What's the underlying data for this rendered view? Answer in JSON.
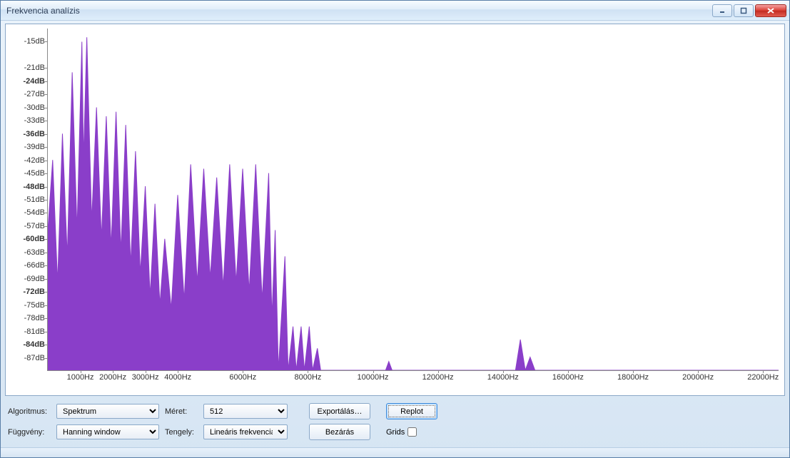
{
  "window": {
    "title": "Frekvencia analízis"
  },
  "controls": {
    "algorithm_label": "Algoritmus:",
    "algorithm_value": "Spektrum",
    "size_label": "Méret:",
    "size_value": "512",
    "function_label": "Függvény:",
    "function_value": "Hanning window",
    "axis_label": "Tengely:",
    "axis_value": "Lineáris frekvencia",
    "export_label": "Exportálás…",
    "close_label": "Bezárás",
    "replot_label": "Replot",
    "grids_label": "Grids"
  },
  "chart": {
    "type": "spectrum",
    "fill_color": "#8a3ec9",
    "background_color": "#ffffff",
    "axis_color": "#888888",
    "ylim": [
      -90,
      -12
    ],
    "y_ticks": [
      {
        "v": -15,
        "label": "-15dB",
        "bold": false
      },
      {
        "v": -21,
        "label": "-21dB",
        "bold": false
      },
      {
        "v": -24,
        "label": "-24dB",
        "bold": true
      },
      {
        "v": -27,
        "label": "-27dB",
        "bold": false
      },
      {
        "v": -30,
        "label": "-30dB",
        "bold": false
      },
      {
        "v": -33,
        "label": "-33dB",
        "bold": false
      },
      {
        "v": -36,
        "label": "-36dB",
        "bold": true
      },
      {
        "v": -39,
        "label": "-39dB",
        "bold": false
      },
      {
        "v": -42,
        "label": "-42dB",
        "bold": false
      },
      {
        "v": -45,
        "label": "-45dB",
        "bold": false
      },
      {
        "v": -48,
        "label": "-48dB",
        "bold": true
      },
      {
        "v": -51,
        "label": "-51dB",
        "bold": false
      },
      {
        "v": -54,
        "label": "-54dB",
        "bold": false
      },
      {
        "v": -57,
        "label": "-57dB",
        "bold": false
      },
      {
        "v": -60,
        "label": "-60dB",
        "bold": true
      },
      {
        "v": -63,
        "label": "-63dB",
        "bold": false
      },
      {
        "v": -66,
        "label": "-66dB",
        "bold": false
      },
      {
        "v": -69,
        "label": "-69dB",
        "bold": false
      },
      {
        "v": -72,
        "label": "-72dB",
        "bold": true
      },
      {
        "v": -75,
        "label": "-75dB",
        "bold": false
      },
      {
        "v": -78,
        "label": "-78dB",
        "bold": false
      },
      {
        "v": -81,
        "label": "-81dB",
        "bold": false
      },
      {
        "v": -84,
        "label": "-84dB",
        "bold": true
      },
      {
        "v": -87,
        "label": "-87dB",
        "bold": false
      }
    ],
    "xlim": [
      0,
      22500
    ],
    "x_ticks": [
      {
        "v": 1000,
        "label": "1000Hz"
      },
      {
        "v": 2000,
        "label": "2000Hz"
      },
      {
        "v": 3000,
        "label": "3000Hz"
      },
      {
        "v": 4000,
        "label": "4000Hz"
      },
      {
        "v": 6000,
        "label": "6000Hz"
      },
      {
        "v": 8000,
        "label": "8000Hz"
      },
      {
        "v": 10000,
        "label": "10000Hz"
      },
      {
        "v": 12000,
        "label": "12000Hz"
      },
      {
        "v": 14000,
        "label": "14000Hz"
      },
      {
        "v": 16000,
        "label": "16000Hz"
      },
      {
        "v": 18000,
        "label": "18000Hz"
      },
      {
        "v": 20000,
        "label": "20000Hz"
      },
      {
        "v": 22000,
        "label": "22000Hz"
      }
    ],
    "floor_db": -90,
    "spectrum": [
      {
        "f": 0,
        "db": -58
      },
      {
        "f": 150,
        "db": -42
      },
      {
        "f": 300,
        "db": -70
      },
      {
        "f": 450,
        "db": -36
      },
      {
        "f": 600,
        "db": -64
      },
      {
        "f": 750,
        "db": -22
      },
      {
        "f": 900,
        "db": -58
      },
      {
        "f": 1050,
        "db": -15
      },
      {
        "f": 1100,
        "db": -42
      },
      {
        "f": 1200,
        "db": -14
      },
      {
        "f": 1350,
        "db": -56
      },
      {
        "f": 1500,
        "db": -30
      },
      {
        "f": 1650,
        "db": -60
      },
      {
        "f": 1800,
        "db": -32
      },
      {
        "f": 1950,
        "db": -62
      },
      {
        "f": 2100,
        "db": -31
      },
      {
        "f": 2250,
        "db": -63
      },
      {
        "f": 2400,
        "db": -34
      },
      {
        "f": 2550,
        "db": -66
      },
      {
        "f": 2700,
        "db": -40
      },
      {
        "f": 2850,
        "db": -68
      },
      {
        "f": 3000,
        "db": -48
      },
      {
        "f": 3150,
        "db": -73
      },
      {
        "f": 3300,
        "db": -52
      },
      {
        "f": 3450,
        "db": -75
      },
      {
        "f": 3600,
        "db": -60
      },
      {
        "f": 3800,
        "db": -76
      },
      {
        "f": 4000,
        "db": -50
      },
      {
        "f": 4200,
        "db": -74
      },
      {
        "f": 4400,
        "db": -43
      },
      {
        "f": 4600,
        "db": -70
      },
      {
        "f": 4800,
        "db": -44
      },
      {
        "f": 5000,
        "db": -69
      },
      {
        "f": 5200,
        "db": -46
      },
      {
        "f": 5400,
        "db": -71
      },
      {
        "f": 5600,
        "db": -43
      },
      {
        "f": 5800,
        "db": -70
      },
      {
        "f": 6000,
        "db": -44
      },
      {
        "f": 6200,
        "db": -72
      },
      {
        "f": 6400,
        "db": -43
      },
      {
        "f": 6600,
        "db": -74
      },
      {
        "f": 6800,
        "db": -45
      },
      {
        "f": 6900,
        "db": -78
      },
      {
        "f": 7000,
        "db": -58
      },
      {
        "f": 7100,
        "db": -90
      },
      {
        "f": 7300,
        "db": -64
      },
      {
        "f": 7400,
        "db": -90
      },
      {
        "f": 7550,
        "db": -80
      },
      {
        "f": 7650,
        "db": -90
      },
      {
        "f": 7800,
        "db": -80
      },
      {
        "f": 7900,
        "db": -90
      },
      {
        "f": 8050,
        "db": -80
      },
      {
        "f": 8150,
        "db": -90
      },
      {
        "f": 8300,
        "db": -85
      },
      {
        "f": 8400,
        "db": -90
      },
      {
        "f": 10400,
        "db": -90
      },
      {
        "f": 10500,
        "db": -88
      },
      {
        "f": 10600,
        "db": -90
      },
      {
        "f": 14400,
        "db": -90
      },
      {
        "f": 14550,
        "db": -83
      },
      {
        "f": 14700,
        "db": -90
      },
      {
        "f": 14850,
        "db": -87
      },
      {
        "f": 15000,
        "db": -90
      },
      {
        "f": 22500,
        "db": -90
      }
    ]
  }
}
